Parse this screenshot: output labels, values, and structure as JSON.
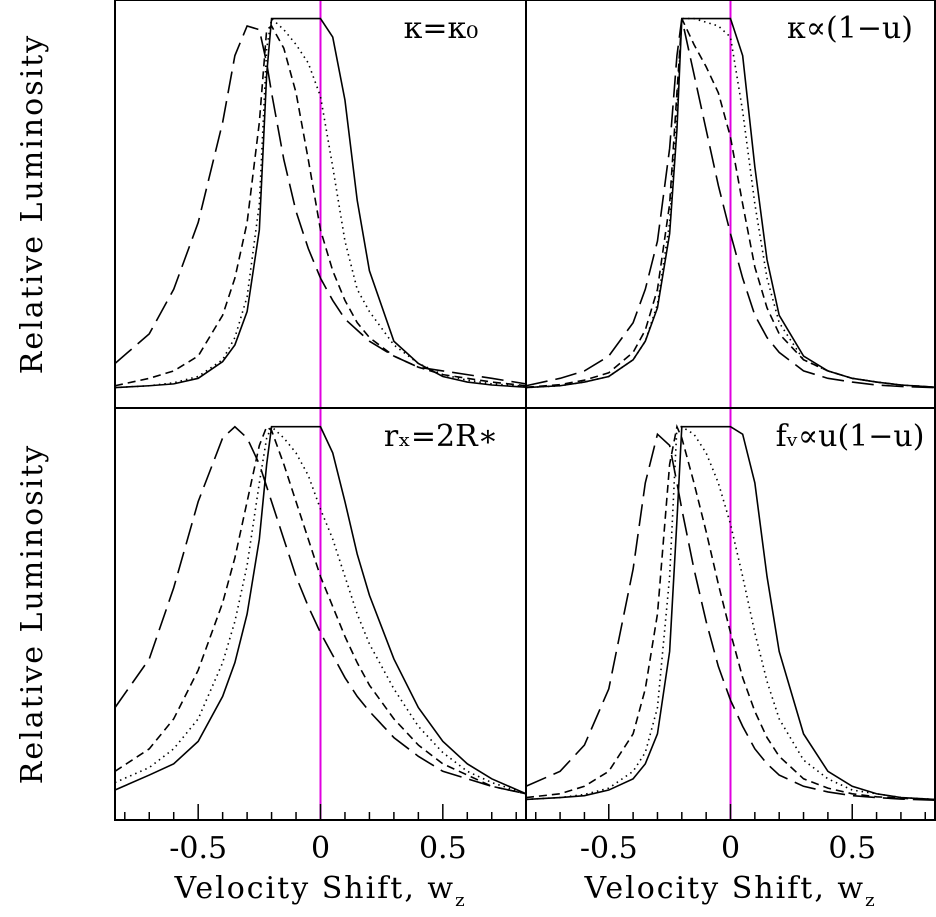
{
  "chart_data": [
    {
      "type": "line",
      "annotation": "κ=κ₀",
      "ylabel": "Relative Luminosity",
      "xlim": [
        -0.84,
        0.84
      ],
      "ylim": [
        -0.05,
        1.05
      ],
      "vline": 0,
      "vline_color": "#e000e0",
      "x": [
        -0.84,
        -0.7,
        -0.6,
        -0.5,
        -0.4,
        -0.35,
        -0.3,
        -0.25,
        -0.22,
        -0.2,
        -0.15,
        -0.1,
        -0.05,
        0,
        0.05,
        0.1,
        0.15,
        0.2,
        0.3,
        0.4,
        0.5,
        0.6,
        0.7,
        0.84
      ],
      "series": [
        {
          "dash": "solid",
          "color": "#000000",
          "values": [
            0.005,
            0.01,
            0.015,
            0.03,
            0.075,
            0.12,
            0.21,
            0.43,
            0.85,
            1,
            1,
            1,
            1,
            1,
            0.95,
            0.78,
            0.51,
            0.32,
            0.13,
            0.07,
            0.035,
            0.02,
            0.012,
            0.006
          ]
        },
        {
          "dash": "dotted",
          "color": "#000000",
          "values": [
            0.005,
            0.01,
            0.018,
            0.035,
            0.08,
            0.14,
            0.25,
            0.5,
            0.92,
            1,
            0.97,
            0.93,
            0.88,
            0.79,
            0.6,
            0.4,
            0.27,
            0.21,
            0.12,
            0.07,
            0.04,
            0.025,
            0.015,
            0.008
          ]
        },
        {
          "dash": "short-dash",
          "color": "#000000",
          "values": [
            0.01,
            0.03,
            0.05,
            0.09,
            0.2,
            0.3,
            0.45,
            0.72,
            0.97,
            0.98,
            0.92,
            0.8,
            0.62,
            0.43,
            0.32,
            0.24,
            0.18,
            0.14,
            0.09,
            0.06,
            0.04,
            0.03,
            0.02,
            0.01
          ]
        },
        {
          "dash": "long-dash",
          "color": "#000000",
          "values": [
            0.07,
            0.15,
            0.27,
            0.45,
            0.72,
            0.9,
            0.98,
            0.97,
            0.88,
            0.8,
            0.62,
            0.48,
            0.38,
            0.3,
            0.24,
            0.19,
            0.16,
            0.13,
            0.09,
            0.06,
            0.05,
            0.04,
            0.03,
            0.015
          ]
        }
      ]
    },
    {
      "type": "line",
      "annotation": "κ∝(1−u)",
      "xlim": [
        -0.84,
        0.84
      ],
      "ylim": [
        -0.05,
        1.05
      ],
      "vline": 0,
      "vline_color": "#e000e0",
      "x": [
        -0.84,
        -0.7,
        -0.6,
        -0.5,
        -0.4,
        -0.35,
        -0.3,
        -0.25,
        -0.22,
        -0.2,
        -0.15,
        -0.1,
        -0.05,
        0,
        0.05,
        0.1,
        0.15,
        0.2,
        0.3,
        0.4,
        0.5,
        0.6,
        0.7,
        0.84
      ],
      "series": [
        {
          "dash": "solid",
          "color": "#000000",
          "values": [
            0.005,
            0.01,
            0.02,
            0.035,
            0.08,
            0.13,
            0.22,
            0.42,
            0.7,
            1,
            1,
            1,
            1,
            1,
            0.9,
            0.6,
            0.35,
            0.2,
            0.09,
            0.05,
            0.03,
            0.02,
            0.012,
            0.006
          ]
        },
        {
          "dash": "dotted",
          "color": "#000000",
          "values": [
            0.005,
            0.01,
            0.02,
            0.035,
            0.08,
            0.13,
            0.23,
            0.45,
            0.75,
            1,
            1,
            0.99,
            0.98,
            0.95,
            0.75,
            0.5,
            0.3,
            0.18,
            0.08,
            0.05,
            0.03,
            0.02,
            0.012,
            0.006
          ]
        },
        {
          "dash": "short-dash",
          "color": "#000000",
          "values": [
            0.006,
            0.013,
            0.025,
            0.045,
            0.1,
            0.16,
            0.27,
            0.5,
            0.8,
            1,
            0.93,
            0.87,
            0.8,
            0.68,
            0.5,
            0.33,
            0.22,
            0.15,
            0.08,
            0.05,
            0.03,
            0.02,
            0.012,
            0.006
          ]
        },
        {
          "dash": "long-dash",
          "color": "#000000",
          "values": [
            0.01,
            0.03,
            0.05,
            0.09,
            0.18,
            0.27,
            0.4,
            0.65,
            0.9,
            1,
            0.85,
            0.7,
            0.55,
            0.42,
            0.3,
            0.2,
            0.14,
            0.1,
            0.05,
            0.03,
            0.02,
            0.012,
            0.008,
            0.005
          ]
        }
      ]
    },
    {
      "type": "line",
      "annotation": "rₓ=2R∗",
      "ylabel": "Relative Luminosity",
      "xlabel": "Velocity Shift, w",
      "xlabel_subscript": "z",
      "xlim": [
        -0.84,
        0.84
      ],
      "ylim": [
        -0.05,
        1.05
      ],
      "vline": 0,
      "vline_color": "#e000e0",
      "xticks": [
        -0.5,
        0,
        0.5
      ],
      "xminor_ticks": [
        -0.8,
        -0.7,
        -0.6,
        -0.4,
        -0.3,
        -0.2,
        -0.1,
        0.1,
        0.2,
        0.3,
        0.4,
        0.6,
        0.7,
        0.8
      ],
      "x": [
        -0.84,
        -0.7,
        -0.6,
        -0.5,
        -0.4,
        -0.35,
        -0.3,
        -0.25,
        -0.22,
        -0.2,
        -0.15,
        -0.1,
        -0.05,
        0,
        0.05,
        0.1,
        0.15,
        0.2,
        0.3,
        0.4,
        0.5,
        0.6,
        0.7,
        0.84
      ],
      "series": [
        {
          "dash": "solid",
          "color": "#000000",
          "values": [
            0.03,
            0.07,
            0.1,
            0.16,
            0.28,
            0.37,
            0.5,
            0.7,
            0.9,
            1,
            1,
            1,
            1,
            1,
            0.93,
            0.8,
            0.66,
            0.55,
            0.38,
            0.25,
            0.16,
            0.1,
            0.06,
            0.02
          ]
        },
        {
          "dash": "dotted",
          "color": "#000000",
          "values": [
            0.05,
            0.09,
            0.14,
            0.22,
            0.37,
            0.48,
            0.63,
            0.85,
            0.97,
            1,
            0.97,
            0.93,
            0.87,
            0.78,
            0.7,
            0.6,
            0.5,
            0.42,
            0.3,
            0.2,
            0.13,
            0.08,
            0.05,
            0.02
          ]
        },
        {
          "dash": "short-dash",
          "color": "#000000",
          "values": [
            0.08,
            0.14,
            0.22,
            0.35,
            0.53,
            0.65,
            0.8,
            0.95,
            1,
            0.99,
            0.9,
            0.8,
            0.7,
            0.6,
            0.52,
            0.44,
            0.37,
            0.31,
            0.22,
            0.15,
            0.1,
            0.07,
            0.04,
            0.02
          ]
        },
        {
          "dash": "long-dash",
          "color": "#000000",
          "values": [
            0.25,
            0.38,
            0.57,
            0.8,
            0.97,
            1,
            0.97,
            0.9,
            0.84,
            0.8,
            0.7,
            0.6,
            0.52,
            0.45,
            0.39,
            0.33,
            0.28,
            0.24,
            0.17,
            0.12,
            0.08,
            0.06,
            0.04,
            0.02
          ]
        }
      ]
    },
    {
      "type": "line",
      "annotation": "fᵥ∝u(1−u)",
      "xlabel": "Velocity Shift, w",
      "xlabel_subscript": "z",
      "xlim": [
        -0.84,
        0.84
      ],
      "ylim": [
        -0.05,
        1.05
      ],
      "vline": 0,
      "vline_color": "#e000e0",
      "xticks": [
        -0.5,
        0,
        0.5
      ],
      "xminor_ticks": [
        -0.8,
        -0.7,
        -0.6,
        -0.4,
        -0.3,
        -0.2,
        -0.1,
        0.1,
        0.2,
        0.3,
        0.4,
        0.6,
        0.7,
        0.8
      ],
      "x": [
        -0.84,
        -0.7,
        -0.6,
        -0.5,
        -0.4,
        -0.35,
        -0.3,
        -0.25,
        -0.22,
        -0.2,
        -0.15,
        -0.1,
        -0.05,
        0,
        0.05,
        0.1,
        0.15,
        0.2,
        0.3,
        0.4,
        0.5,
        0.6,
        0.7,
        0.84
      ],
      "series": [
        {
          "dash": "solid",
          "color": "#000000",
          "values": [
            0.005,
            0.01,
            0.015,
            0.03,
            0.06,
            0.1,
            0.18,
            0.4,
            0.75,
            1,
            1,
            1,
            1,
            1,
            0.98,
            0.85,
            0.6,
            0.4,
            0.18,
            0.08,
            0.04,
            0.02,
            0.01,
            0.005
          ]
        },
        {
          "dash": "dotted",
          "color": "#000000",
          "values": [
            0.005,
            0.01,
            0.018,
            0.035,
            0.08,
            0.13,
            0.25,
            0.6,
            1,
            1,
            0.98,
            0.93,
            0.85,
            0.74,
            0.6,
            0.45,
            0.32,
            0.22,
            0.11,
            0.06,
            0.03,
            0.02,
            0.01,
            0.005
          ]
        },
        {
          "dash": "short-dash",
          "color": "#000000",
          "values": [
            0.01,
            0.02,
            0.04,
            0.08,
            0.18,
            0.3,
            0.5,
            0.9,
            1,
            0.97,
            0.85,
            0.72,
            0.58,
            0.45,
            0.33,
            0.24,
            0.17,
            0.12,
            0.06,
            0.035,
            0.02,
            0.012,
            0.008,
            0.004
          ]
        },
        {
          "dash": "long-dash",
          "color": "#000000",
          "values": [
            0.04,
            0.08,
            0.15,
            0.3,
            0.62,
            0.85,
            0.98,
            0.95,
            0.85,
            0.78,
            0.62,
            0.48,
            0.36,
            0.27,
            0.2,
            0.14,
            0.1,
            0.07,
            0.04,
            0.025,
            0.015,
            0.01,
            0.006,
            0.003
          ]
        }
      ]
    }
  ]
}
